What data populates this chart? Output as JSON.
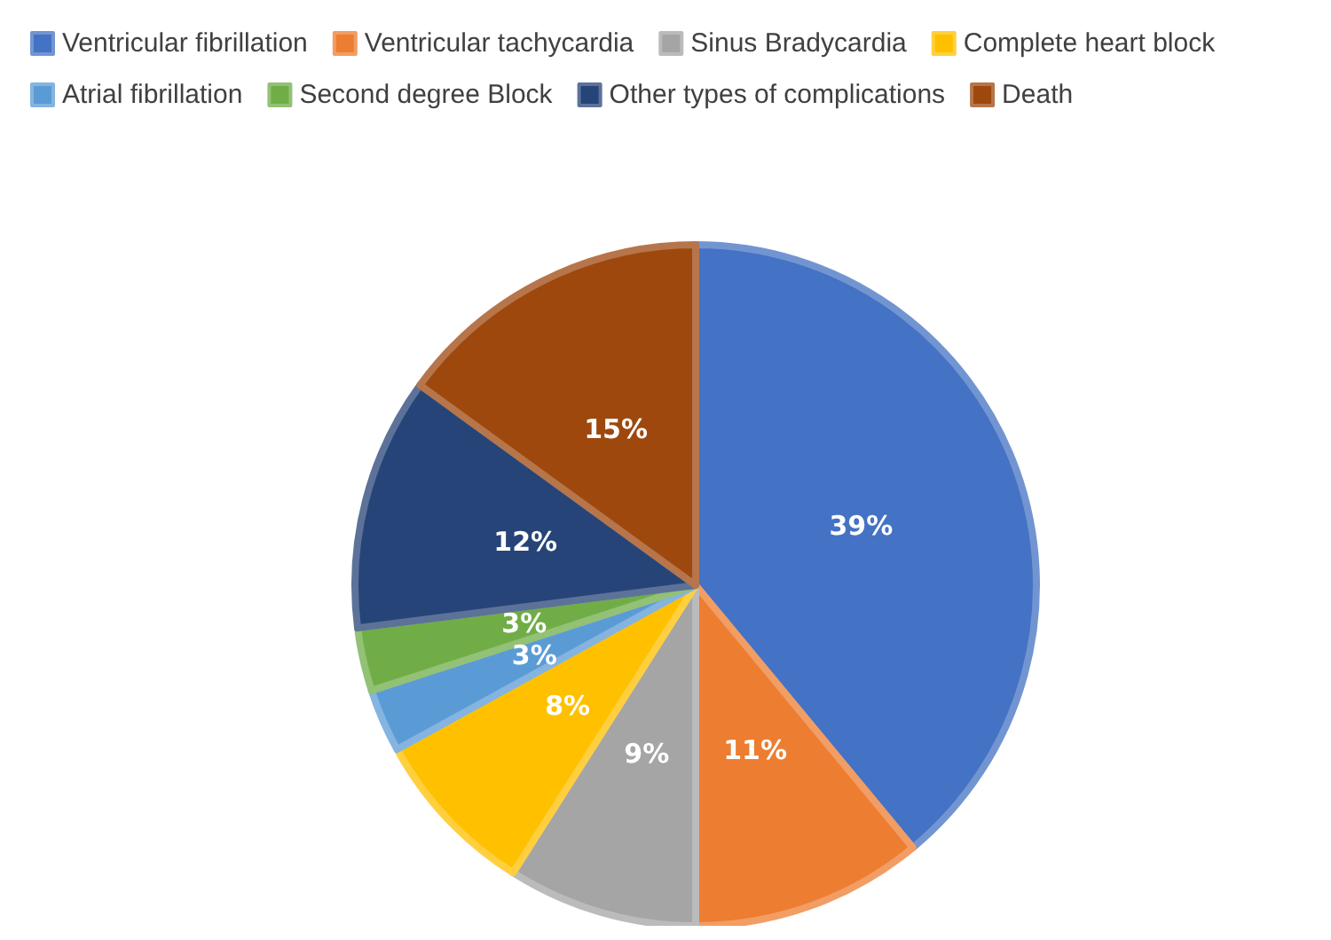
{
  "chart_data": {
    "type": "pie",
    "categories": [
      "Ventricular fibrillation",
      "Ventricular tachycardia",
      "Sinus Bradycardia",
      "Complete heart block",
      "Atrial fibrillation",
      "Second degree Block",
      "Other types of complications",
      "Death"
    ],
    "values": [
      39,
      11,
      9,
      8,
      3,
      3,
      12,
      15
    ],
    "value_labels": [
      "39%",
      "11%",
      "9%",
      "8%",
      "3%",
      "3%",
      "12%",
      "15%"
    ],
    "colors": [
      "#4472c4",
      "#ed7d31",
      "#a5a5a5",
      "#ffc000",
      "#5b9bd5",
      "#70ad47",
      "#264478",
      "#9e480e"
    ],
    "legend": "top left"
  }
}
